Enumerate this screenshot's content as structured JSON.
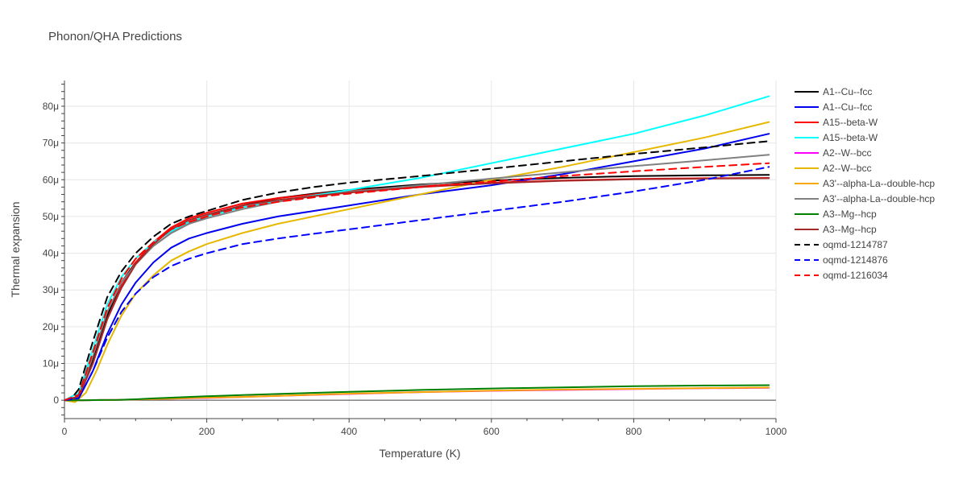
{
  "chart_data": {
    "type": "line",
    "title": "Phonon/QHA Predictions",
    "xlabel": "Temperature (K)",
    "ylabel": "Thermal expansion",
    "xlim": [
      0,
      1000
    ],
    "ylim": [
      -5e-06,
      8.7e-05
    ],
    "x_ticks": [
      0,
      200,
      400,
      600,
      800,
      1000
    ],
    "x_tick_labels": [
      "0",
      "200",
      "400",
      "600",
      "800",
      "1000"
    ],
    "y_ticks": [
      0,
      1e-05,
      2e-05,
      3e-05,
      4e-05,
      5e-05,
      6e-05,
      7e-05,
      8e-05
    ],
    "y_tick_labels": [
      "0",
      "10μ",
      "20μ",
      "30μ",
      "40μ",
      "50μ",
      "60μ",
      "70μ",
      "80μ"
    ],
    "grid": true,
    "legend_position": "right",
    "series": [
      {
        "name": "A1--Cu--fcc",
        "color": "#000000",
        "dash": "solid",
        "x": [
          0,
          20,
          40,
          60,
          80,
          100,
          125,
          150,
          175,
          200,
          250,
          300,
          350,
          400,
          500,
          600,
          700,
          800,
          900,
          990
        ],
        "y": [
          0,
          1e-06,
          1.1e-05,
          2.3e-05,
          3.2e-05,
          3.75e-05,
          4.2e-05,
          4.55e-05,
          4.8e-05,
          5e-05,
          5.3e-05,
          5.5e-05,
          5.62e-05,
          5.72e-05,
          5.87e-05,
          5.98e-05,
          6.05e-05,
          6.1e-05,
          6.12e-05,
          6.13e-05
        ]
      },
      {
        "name": "A1--Cu--fcc",
        "color": "#0000ee",
        "dash": "solid",
        "x": [
          0,
          20,
          40,
          60,
          80,
          100,
          125,
          150,
          175,
          200,
          250,
          300,
          350,
          400,
          500,
          600,
          700,
          800,
          900,
          990
        ],
        "y": [
          0,
          5e-07,
          8e-06,
          1.8e-05,
          2.6e-05,
          3.2e-05,
          3.75e-05,
          4.15e-05,
          4.4e-05,
          4.55e-05,
          4.8e-05,
          5e-05,
          5.15e-05,
          5.3e-05,
          5.6e-05,
          5.85e-05,
          6.15e-05,
          6.5e-05,
          6.85e-05,
          7.25e-05
        ]
      },
      {
        "name": "A15--beta-W",
        "color": "#ff0000",
        "dash": "solid",
        "x": [
          0,
          20,
          40,
          60,
          80,
          100,
          125,
          150,
          175,
          200,
          250,
          300,
          350,
          400,
          500,
          600,
          700,
          800,
          900,
          990
        ],
        "y": [
          0,
          1e-06,
          1e-05,
          2.2e-05,
          3.1e-05,
          3.75e-05,
          4.3e-05,
          4.7e-05,
          4.95e-05,
          5.1e-05,
          5.35e-05,
          5.5e-05,
          5.6e-05,
          5.7e-05,
          5.82e-05,
          5.92e-05,
          5.98e-05,
          6.02e-05,
          6.04e-05,
          6.05e-05
        ]
      },
      {
        "name": "A15--beta-W",
        "color": "#00ffff",
        "dash": "solid",
        "x": [
          0,
          20,
          40,
          60,
          80,
          100,
          125,
          150,
          175,
          200,
          250,
          300,
          350,
          400,
          500,
          600,
          700,
          800,
          900,
          990
        ],
        "y": [
          0,
          2e-06,
          1.4e-05,
          2.6e-05,
          3.35e-05,
          3.85e-05,
          4.3e-05,
          4.6e-05,
          4.85e-05,
          5e-05,
          5.25e-05,
          5.42e-05,
          5.57e-05,
          5.72e-05,
          6.05e-05,
          6.45e-05,
          6.85e-05,
          7.25e-05,
          7.75e-05,
          8.27e-05
        ]
      },
      {
        "name": "A2--W--bcc",
        "color": "#ff00ff",
        "dash": "solid",
        "x": [
          0,
          25,
          50,
          75,
          100,
          125,
          150,
          200,
          250,
          300,
          400,
          500,
          600,
          700,
          800,
          900,
          990
        ],
        "y": [
          0,
          0,
          5e-08,
          1e-07,
          2e-07,
          3e-07,
          4e-07,
          6e-07,
          9e-07,
          1.2e-06,
          1.7e-06,
          2.2e-06,
          2.55e-06,
          2.8e-06,
          3.05e-06,
          3.25e-06,
          3.4e-06
        ]
      },
      {
        "name": "A2--W--bcc",
        "color": "#e6b800",
        "dash": "solid",
        "x": [
          0,
          15,
          30,
          45,
          60,
          80,
          100,
          125,
          150,
          175,
          200,
          250,
          300,
          350,
          400,
          500,
          600,
          700,
          800,
          900,
          990
        ],
        "y": [
          0,
          -5e-07,
          2e-06,
          8e-06,
          1.5e-05,
          2.3e-05,
          2.9e-05,
          3.4e-05,
          3.8e-05,
          4.05e-05,
          4.25e-05,
          4.55e-05,
          4.8e-05,
          5e-05,
          5.2e-05,
          5.6e-05,
          6e-05,
          6.35e-05,
          6.75e-05,
          7.15e-05,
          7.57e-05
        ]
      },
      {
        "name": "A3'--alpha-La--double-hcp",
        "color": "#f5a800",
        "dash": "solid",
        "x": [
          0,
          25,
          50,
          75,
          100,
          125,
          150,
          200,
          250,
          300,
          400,
          500,
          600,
          700,
          800,
          900,
          990
        ],
        "y": [
          0,
          0,
          5e-08,
          1e-07,
          2e-07,
          3e-07,
          4e-07,
          7e-07,
          9e-07,
          1.2e-06,
          1.8e-06,
          2.2e-06,
          2.6e-06,
          2.9e-06,
          3.1e-06,
          3.3e-06,
          3.45e-06
        ]
      },
      {
        "name": "A3'--alpha-La--double-hcp",
        "color": "#808080",
        "dash": "solid",
        "x": [
          0,
          20,
          40,
          60,
          80,
          100,
          125,
          150,
          175,
          200,
          250,
          300,
          350,
          400,
          500,
          600,
          700,
          800,
          900,
          990
        ],
        "y": [
          0,
          1e-06,
          1.2e-05,
          2.4e-05,
          3.2e-05,
          3.7e-05,
          4.2e-05,
          4.55e-05,
          4.8e-05,
          4.95e-05,
          5.2e-05,
          5.4e-05,
          5.55e-05,
          5.67e-05,
          5.85e-05,
          6.03e-05,
          6.2e-05,
          6.37e-05,
          6.53e-05,
          6.68e-05
        ]
      },
      {
        "name": "A3--Mg--hcp",
        "color": "#008000",
        "dash": "solid",
        "x": [
          0,
          25,
          50,
          75,
          100,
          125,
          150,
          200,
          250,
          300,
          400,
          500,
          600,
          700,
          800,
          900,
          990
        ],
        "y": [
          0,
          0,
          5e-08,
          1e-07,
          2.5e-07,
          5e-07,
          7e-07,
          1.1e-06,
          1.4e-06,
          1.7e-06,
          2.3e-06,
          2.8e-06,
          3.2e-06,
          3.5e-06,
          3.8e-06,
          4e-06,
          4.1e-06
        ]
      },
      {
        "name": "A3--Mg--hcp",
        "color": "#a52a2a",
        "dash": "solid",
        "x": [
          0,
          20,
          40,
          60,
          80,
          100,
          125,
          150,
          175,
          200,
          250,
          300,
          350,
          400,
          500,
          600,
          700,
          800,
          900,
          990
        ],
        "y": [
          0,
          1e-06,
          1e-05,
          2.2e-05,
          3.05e-05,
          3.7e-05,
          4.25e-05,
          4.65e-05,
          4.9e-05,
          5.05e-05,
          5.3e-05,
          5.45e-05,
          5.55e-05,
          5.65e-05,
          5.8e-05,
          5.9e-05,
          5.97e-05,
          6.01e-05,
          6.03e-05,
          6.04e-05
        ]
      },
      {
        "name": "oqmd-1214787",
        "color": "#000000",
        "dash": "dash",
        "x": [
          0,
          10,
          20,
          40,
          60,
          80,
          100,
          125,
          150,
          175,
          200,
          250,
          300,
          350,
          400,
          500,
          600,
          700,
          800,
          900,
          990
        ],
        "y": [
          0,
          5e-07,
          3e-06,
          1.6e-05,
          2.8e-05,
          3.5e-05,
          4e-05,
          4.45e-05,
          4.8e-05,
          5e-05,
          5.15e-05,
          5.45e-05,
          5.65e-05,
          5.8e-05,
          5.92e-05,
          6.1e-05,
          6.3e-05,
          6.5e-05,
          6.7e-05,
          6.88e-05,
          7.05e-05
        ]
      },
      {
        "name": "oqmd-1214876",
        "color": "#0000ff",
        "dash": "dash",
        "x": [
          0,
          20,
          40,
          60,
          80,
          100,
          125,
          150,
          175,
          200,
          250,
          300,
          350,
          400,
          500,
          600,
          700,
          800,
          900,
          990
        ],
        "y": [
          0,
          5e-07,
          8e-06,
          1.7e-05,
          2.4e-05,
          2.9e-05,
          3.35e-05,
          3.65e-05,
          3.85e-05,
          4e-05,
          4.25e-05,
          4.4e-05,
          4.53e-05,
          4.65e-05,
          4.9e-05,
          5.15e-05,
          5.4e-05,
          5.68e-05,
          6e-05,
          6.35e-05
        ]
      },
      {
        "name": "oqmd-1216034",
        "color": "#ff0000",
        "dash": "dash",
        "x": [
          0,
          20,
          40,
          60,
          80,
          100,
          125,
          150,
          175,
          200,
          250,
          300,
          350,
          400,
          500,
          600,
          700,
          800,
          900,
          990
        ],
        "y": [
          0,
          1.5e-06,
          1.3e-05,
          2.5e-05,
          3.3e-05,
          3.85e-05,
          4.3e-05,
          4.65e-05,
          4.85e-05,
          5e-05,
          5.25e-05,
          5.4e-05,
          5.52e-05,
          5.62e-05,
          5.8e-05,
          5.95e-05,
          6.1e-05,
          6.23e-05,
          6.35e-05,
          6.45e-05
        ]
      }
    ]
  }
}
